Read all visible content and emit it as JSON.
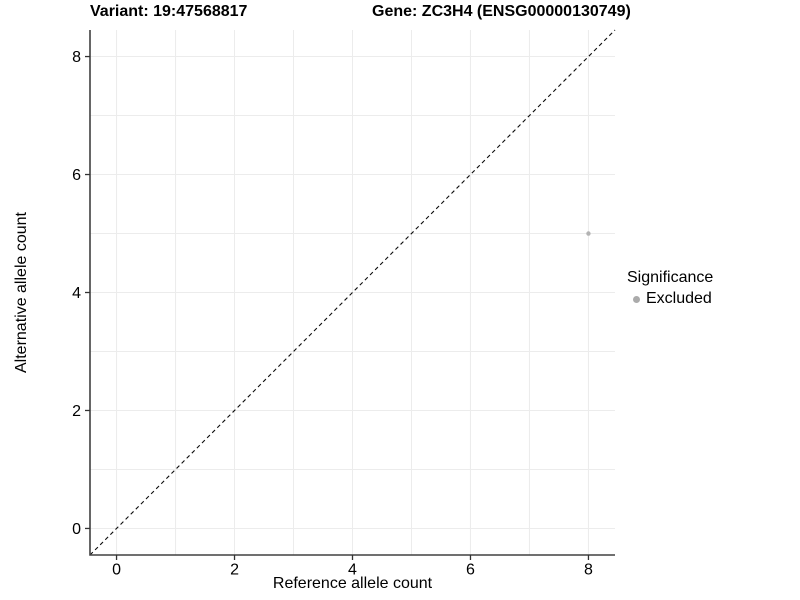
{
  "chart_data": {
    "type": "scatter",
    "titles": {
      "variant": "Variant: 19:47568817",
      "gene": "Gene: ZC3H4 (ENSG00000130749)"
    },
    "xlabel": "Reference allele count",
    "ylabel": "Alternative allele count",
    "xlim": [
      -0.45,
      8.45
    ],
    "ylim": [
      -0.45,
      8.45
    ],
    "x_ticks": [
      0,
      2,
      4,
      6,
      8
    ],
    "y_ticks": [
      0,
      2,
      4,
      6,
      8
    ],
    "grid": {
      "show": true,
      "interval": 1,
      "from": 0,
      "to": 8,
      "color": "#ececec"
    },
    "identity_line": {
      "show": true,
      "equation": "y = x",
      "style": "dashed",
      "color": "#0d0d0d"
    },
    "series": [
      {
        "name": "Excluded",
        "color": "#b3b3b3",
        "point_radius": 2.2,
        "points": [
          {
            "x": 8,
            "y": 5
          }
        ]
      }
    ],
    "legend": {
      "title": "Significance",
      "position": "right",
      "entries": [
        {
          "label": "Excluded",
          "color": "#ababab"
        }
      ]
    },
    "axis_style": {
      "line_color": "#404040",
      "tick_color": "#333333",
      "tick_label_color": "#000000"
    }
  }
}
